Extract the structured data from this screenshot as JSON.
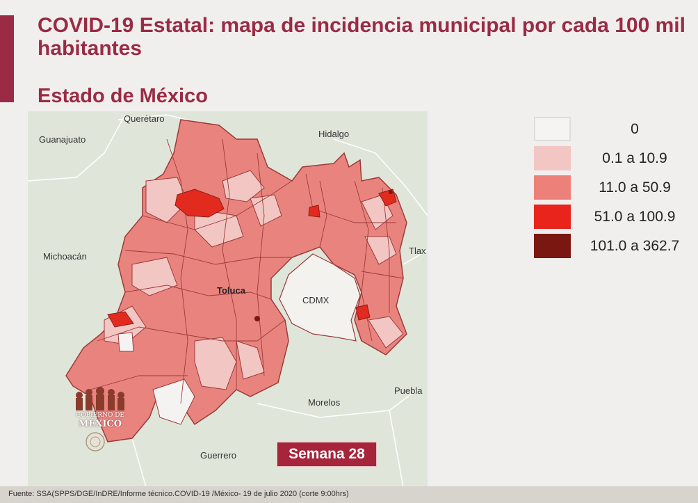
{
  "header": {
    "title": "COVID-19 Estatal: mapa de incidencia municipal por cada 100 mil habitantes",
    "subtitle": "Estado de México"
  },
  "map": {
    "neighbors": {
      "queretaro": "Querétaro",
      "guanajuato": "Guanajuato",
      "hidalgo": "Hidalgo",
      "michoacan": "Michoacán",
      "tlax": "Tlax",
      "cdmx": "CDMX",
      "morelos": "Morelos",
      "puebla": "Puebla",
      "guerrero": "Guerrero"
    },
    "city_label": "Toluca",
    "colors": {
      "state_fill": "#e9837d",
      "municipal_border": "#9c3a3a",
      "outside_fill": "#dfe6d9",
      "light_fill": "#f2c6c3",
      "white_fill": "#f5f3f1",
      "high_fill": "#e32a1f",
      "highest_fill": "#7a1710"
    }
  },
  "legend": {
    "items": [
      {
        "label": "0",
        "color": "#f6f4f2"
      },
      {
        "label": "0.1 a 10.9",
        "color": "#f2c6c3"
      },
      {
        "label": "11.0 a 50.9",
        "color": "#ed8078"
      },
      {
        "label": "51.0 a 100.9",
        "color": "#e8241d"
      },
      {
        "label": "101.0 a 362.7",
        "color": "#7a1710"
      }
    ]
  },
  "badge": {
    "week": "Semana 28"
  },
  "footer": {
    "source": "Fuente: SSA(SPPS/DGE/InDRE/Informe técnico.COVID-19 /México- 19 de julio 2020 (corte 9:00hrs)"
  },
  "logo": {
    "line1": "GOBIERNO DE",
    "line2": "MÉXICO"
  }
}
